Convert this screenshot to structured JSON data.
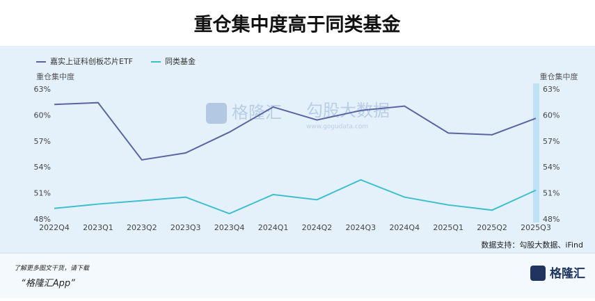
{
  "chart_data": {
    "type": "line",
    "title": "重仓集中度高于同类基金",
    "y_label": "重仓集中度",
    "y2_label": "重仓集中度",
    "categories": [
      "2022Q4",
      "2023Q1",
      "2023Q2",
      "2023Q3",
      "2023Q4",
      "2024Q1",
      "2024Q2",
      "2024Q3",
      "2024Q4",
      "2025Q1",
      "2025Q2",
      "2025Q3"
    ],
    "series": [
      {
        "name": "嘉实上证科创板芯片ETF",
        "color": "#5b64a3",
        "values": [
          61.3,
          61.5,
          54.9,
          55.7,
          58.1,
          61.0,
          59.5,
          60.6,
          61.1,
          58.0,
          57.8,
          59.7
        ]
      },
      {
        "name": "同类基金",
        "color": "#3dbfd0",
        "values": [
          49.3,
          49.8,
          50.2,
          50.6,
          48.7,
          50.9,
          50.3,
          52.6,
          50.6,
          49.7,
          49.1,
          51.4
        ]
      }
    ],
    "ylim": [
      48,
      63
    ],
    "yticks": [
      {
        "value": 48,
        "label": "48%"
      },
      {
        "value": 51,
        "label": "51%"
      },
      {
        "value": 54,
        "label": "54%"
      },
      {
        "value": 57,
        "label": "57%"
      },
      {
        "value": 60,
        "label": "60%"
      },
      {
        "value": 63,
        "label": "63%"
      }
    ],
    "y2lim": [
      48,
      63
    ],
    "y2ticks": [
      {
        "value": 48,
        "label": "48%"
      },
      {
        "value": 51,
        "label": "51%"
      },
      {
        "value": 54,
        "label": "54%"
      },
      {
        "value": 57,
        "label": "57%"
      },
      {
        "value": 60,
        "label": "60%"
      },
      {
        "value": 63,
        "label": "63%"
      }
    ],
    "grid": false,
    "legend": "top-left",
    "watermark": {
      "brand": "格隆汇",
      "source": "勾股大数据",
      "url": "www.gogudata.com"
    },
    "source_note": "数据支持：勾股大数据、iFind",
    "footer": {
      "line1": "了解更多图文干货，请下载",
      "line2": "“格隆汇App”",
      "logo": "格隆汇"
    }
  }
}
